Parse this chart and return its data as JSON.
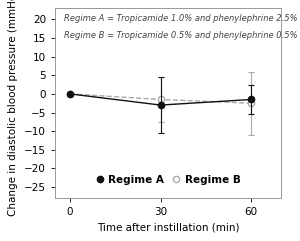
{
  "time": [
    0,
    30,
    60
  ],
  "regime_A_mean": [
    0,
    -3,
    -1.5
  ],
  "regime_A_sd": [
    0.3,
    7.5,
    4.0
  ],
  "regime_B_mean": [
    0,
    -1.5,
    -2.5
  ],
  "regime_B_sd": [
    0.3,
    6.0,
    8.5
  ],
  "xlim": [
    -5,
    70
  ],
  "ylim": [
    -28,
    23
  ],
  "yticks": [
    -25,
    -20,
    -15,
    -10,
    -5,
    0,
    5,
    10,
    15,
    20
  ],
  "xticks": [
    0,
    30,
    60
  ],
  "xlabel": "Time after instillation (min)",
  "ylabel": "Change in diastolic blood pressure (mmHg)",
  "annotation_line1": "Regime A = Tropicamide 1.0% and phenylephrine 2.5%",
  "annotation_line2": "Regime B = Tropicamide 0.5% and phenylephrine 0.5%",
  "color_A": "#111111",
  "color_B": "#aaaaaa",
  "legend_A": "Regime A",
  "legend_B": "Regime B",
  "bg_color": "#ffffff",
  "annotation_fontsize": 6.0,
  "axis_fontsize": 7.5,
  "tick_fontsize": 7.5
}
